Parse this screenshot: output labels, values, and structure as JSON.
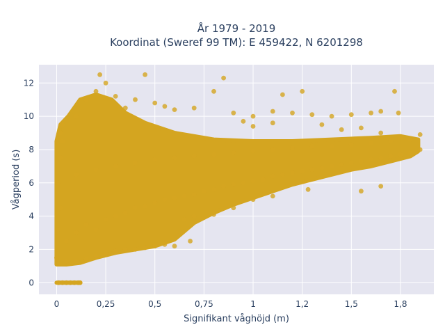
{
  "chart_data": {
    "type": "scatter",
    "title": [
      "År 1979 - 2019",
      "Koordinat (Sweref 99 TM): E 459422, N 6201298"
    ],
    "xlabel": "Signifikant våghöjd (m)",
    "ylabel": "Vågperiod (s)",
    "xlim": [
      -0.09,
      1.92
    ],
    "ylim": [
      -0.7,
      13.1
    ],
    "x_ticks": [
      0,
      0.25,
      0.5,
      0.75,
      1,
      1.25,
      1.5,
      1.75
    ],
    "x_tick_labels": [
      "0",
      "0,25",
      "0,5",
      "0,75",
      "1",
      "1,2",
      "1,5",
      "1,8"
    ],
    "y_ticks": [
      0,
      2,
      4,
      6,
      8,
      10,
      12
    ],
    "y_tick_labels": [
      "0",
      "2",
      "4",
      "6",
      "8",
      "10",
      "12"
    ],
    "grid": true,
    "plot_background": "#e5e5f0",
    "marker_color": "#d4a520",
    "series": [
      {
        "name": "",
        "points": [
          [
            0.01,
            0
          ],
          [
            0.03,
            0
          ],
          [
            0.05,
            0
          ],
          [
            0.07,
            0
          ],
          [
            0.09,
            0
          ],
          [
            0.11,
            0
          ],
          [
            0.12,
            0
          ],
          [
            0.0,
            1.5
          ],
          [
            0.01,
            3.2
          ],
          [
            0.02,
            4.5
          ],
          [
            0.01,
            6.0
          ],
          [
            0.02,
            7.5
          ],
          [
            0.03,
            8.5
          ],
          [
            0.02,
            9.0
          ],
          [
            0.03,
            9.5
          ],
          [
            0.05,
            1.3
          ],
          [
            0.08,
            1.2
          ],
          [
            0.1,
            1.3
          ],
          [
            0.15,
            1.4
          ],
          [
            0.2,
            1.6
          ],
          [
            0.25,
            1.8
          ],
          [
            0.3,
            1.9
          ],
          [
            0.35,
            2.0
          ],
          [
            0.4,
            2.0
          ],
          [
            0.45,
            2.1
          ],
          [
            0.5,
            2.2
          ],
          [
            0.55,
            2.3
          ],
          [
            0.6,
            2.2
          ],
          [
            0.68,
            2.5
          ],
          [
            0.05,
            2.5
          ],
          [
            0.1,
            3.0
          ],
          [
            0.15,
            3.5
          ],
          [
            0.2,
            3.2
          ],
          [
            0.25,
            3.8
          ],
          [
            0.3,
            4.0
          ],
          [
            0.35,
            4.2
          ],
          [
            0.4,
            4.5
          ],
          [
            0.45,
            4.6
          ],
          [
            0.5,
            4.8
          ],
          [
            0.55,
            5.0
          ],
          [
            0.6,
            5.1
          ],
          [
            0.65,
            5.2
          ],
          [
            0.7,
            5.3
          ],
          [
            0.75,
            5.5
          ],
          [
            0.8,
            5.6
          ],
          [
            0.85,
            5.8
          ],
          [
            0.9,
            5.9
          ],
          [
            0.95,
            6.0
          ],
          [
            1.0,
            6.1
          ],
          [
            1.05,
            6.2
          ],
          [
            1.1,
            6.4
          ],
          [
            1.15,
            6.5
          ],
          [
            1.2,
            6.6
          ],
          [
            1.25,
            6.7
          ],
          [
            1.3,
            6.8
          ],
          [
            1.35,
            6.9
          ],
          [
            1.4,
            7.0
          ],
          [
            1.45,
            7.1
          ],
          [
            1.5,
            7.2
          ],
          [
            1.55,
            7.3
          ],
          [
            1.6,
            7.4
          ],
          [
            1.65,
            7.5
          ],
          [
            1.7,
            7.6
          ],
          [
            1.75,
            7.7
          ],
          [
            1.8,
            7.8
          ],
          [
            1.85,
            8.0
          ],
          [
            0.1,
            6.5
          ],
          [
            0.2,
            6.8
          ],
          [
            0.3,
            7.0
          ],
          [
            0.4,
            7.2
          ],
          [
            0.5,
            7.4
          ],
          [
            0.6,
            7.5
          ],
          [
            0.7,
            7.6
          ],
          [
            0.8,
            7.7
          ],
          [
            0.9,
            7.8
          ],
          [
            1.0,
            7.9
          ],
          [
            1.1,
            8.0
          ],
          [
            1.2,
            8.1
          ],
          [
            1.3,
            8.2
          ],
          [
            1.4,
            8.2
          ],
          [
            1.5,
            8.3
          ],
          [
            1.6,
            8.4
          ],
          [
            1.7,
            8.5
          ],
          [
            1.8,
            8.6
          ],
          [
            1.85,
            8.9
          ],
          [
            0.1,
            10.0
          ],
          [
            0.15,
            11.0
          ],
          [
            0.2,
            11.5
          ],
          [
            0.22,
            12.5
          ],
          [
            0.25,
            12.0
          ],
          [
            0.3,
            11.2
          ],
          [
            0.35,
            10.5
          ],
          [
            0.4,
            11.0
          ],
          [
            0.45,
            12.5
          ],
          [
            0.5,
            10.8
          ],
          [
            0.55,
            10.6
          ],
          [
            0.6,
            10.4
          ],
          [
            0.7,
            10.5
          ],
          [
            0.8,
            11.5
          ],
          [
            0.85,
            12.3
          ],
          [
            0.9,
            10.2
          ],
          [
            1.0,
            10.0
          ],
          [
            1.1,
            10.3
          ],
          [
            1.15,
            11.3
          ],
          [
            1.2,
            10.2
          ],
          [
            1.25,
            11.5
          ],
          [
            1.3,
            10.1
          ],
          [
            1.4,
            10.0
          ],
          [
            1.5,
            10.1
          ],
          [
            1.6,
            10.2
          ],
          [
            1.65,
            10.3
          ],
          [
            1.72,
            11.5
          ],
          [
            1.74,
            10.2
          ],
          [
            1.55,
            9.3
          ],
          [
            1.65,
            9.0
          ],
          [
            1.75,
            8.7
          ],
          [
            1.35,
            9.5
          ],
          [
            1.1,
            9.6
          ],
          [
            1.0,
            9.4
          ],
          [
            0.95,
            9.7
          ],
          [
            1.45,
            9.2
          ],
          [
            1.28,
            5.6
          ],
          [
            1.55,
            5.5
          ],
          [
            1.65,
            5.8
          ],
          [
            1.1,
            5.2
          ],
          [
            1.0,
            5.0
          ],
          [
            0.9,
            4.5
          ],
          [
            0.8,
            4.1
          ],
          [
            0.7,
            4.0
          ],
          [
            0.65,
            3.8
          ]
        ]
      }
    ]
  }
}
